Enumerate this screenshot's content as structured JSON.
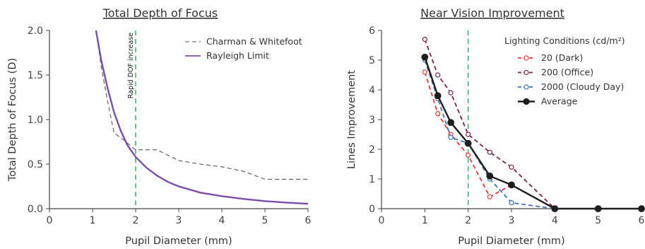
{
  "chart_data": [
    {
      "type": "line",
      "title": "Total Depth of Focus",
      "xlabel": "Pupil Diameter (mm)",
      "ylabel": "Total Depth of Focus (D)",
      "xlim": [
        0,
        6
      ],
      "ylim": [
        0,
        2.0
      ],
      "xticks": [
        "0",
        "1",
        "2",
        "3",
        "4",
        "5",
        "6"
      ],
      "yticks": [
        "0.0",
        "0.5",
        "1.0",
        "1.5",
        "2.0"
      ],
      "legend_position": "top-right",
      "grid": false,
      "annotation": {
        "text": "Rapid DOF increase",
        "x": 2
      },
      "series": [
        {
          "name": "Charman & Whitefoot",
          "style": "dashed",
          "color": "#555555",
          "x": [
            1.08,
            1.2,
            1.35,
            1.5,
            1.7,
            1.95,
            2.0,
            2.5,
            3.0,
            3.5,
            4.0,
            4.5,
            5.0,
            5.5,
            6.0
          ],
          "y": [
            2.0,
            1.6,
            1.2,
            0.85,
            0.78,
            0.68,
            0.66,
            0.66,
            0.54,
            0.5,
            0.47,
            0.42,
            0.33,
            0.33,
            0.33
          ]
        },
        {
          "name": "Rayleigh Limit",
          "style": "solid",
          "color": "#7b4ea8",
          "x": [
            1.08,
            1.2,
            1.35,
            1.5,
            1.65,
            1.8,
            2.0,
            2.25,
            2.5,
            2.75,
            3.0,
            3.5,
            4.0,
            4.5,
            5.0,
            5.5,
            6.0
          ],
          "y": [
            2.0,
            1.67,
            1.35,
            1.08,
            0.88,
            0.72,
            0.58,
            0.46,
            0.37,
            0.3,
            0.25,
            0.18,
            0.14,
            0.11,
            0.085,
            0.068,
            0.055
          ]
        }
      ]
    },
    {
      "type": "line",
      "title": "Near Vision Improvement",
      "xlabel": "Pupil Diameter (mm)",
      "ylabel": "Lines Improvement",
      "xlim": [
        0,
        6
      ],
      "ylim": [
        0,
        6
      ],
      "xticks": [
        "0",
        "1",
        "2",
        "3",
        "4",
        "5",
        "6"
      ],
      "yticks": [
        "0",
        "1",
        "2",
        "3",
        "4",
        "5",
        "6"
      ],
      "legend_title": "Lighting Conditions (cd/m²)",
      "legend_position": "top-right",
      "grid": false,
      "reference_line_x": 2,
      "series": [
        {
          "name": "20 (Dark)",
          "style": "dashed",
          "marker": "open-circle",
          "color": "#e03a3a",
          "x": [
            1.0,
            1.3,
            1.6,
            2.0,
            2.5,
            3.0,
            4.0
          ],
          "y": [
            4.6,
            3.2,
            2.5,
            1.8,
            0.4,
            0.8,
            0.0
          ]
        },
        {
          "name": "200 (Office)",
          "style": "dashed",
          "marker": "open-circle",
          "color": "#7a2150",
          "x": [
            1.0,
            1.3,
            1.6,
            2.0,
            2.5,
            3.0,
            4.0
          ],
          "y": [
            5.7,
            4.5,
            3.9,
            2.5,
            1.9,
            1.4,
            0.0
          ]
        },
        {
          "name": "2000 (Cloudy Day)",
          "style": "dashed",
          "marker": "open-circle",
          "color": "#3f73b8",
          "x": [
            1.0,
            1.3,
            1.6,
            2.0,
            2.5,
            3.0,
            4.0
          ],
          "y": [
            5.0,
            3.7,
            2.4,
            2.2,
            1.0,
            0.2,
            0.0
          ]
        },
        {
          "name": "Average",
          "style": "solid",
          "marker": "filled-circle",
          "color": "#1e1e1e",
          "x": [
            1.0,
            1.3,
            1.6,
            2.0,
            2.5,
            3.0,
            4.0,
            5.0,
            6.0
          ],
          "y": [
            5.1,
            3.8,
            2.9,
            2.2,
            1.1,
            0.8,
            0.0,
            0.0,
            0.0
          ]
        }
      ]
    }
  ]
}
